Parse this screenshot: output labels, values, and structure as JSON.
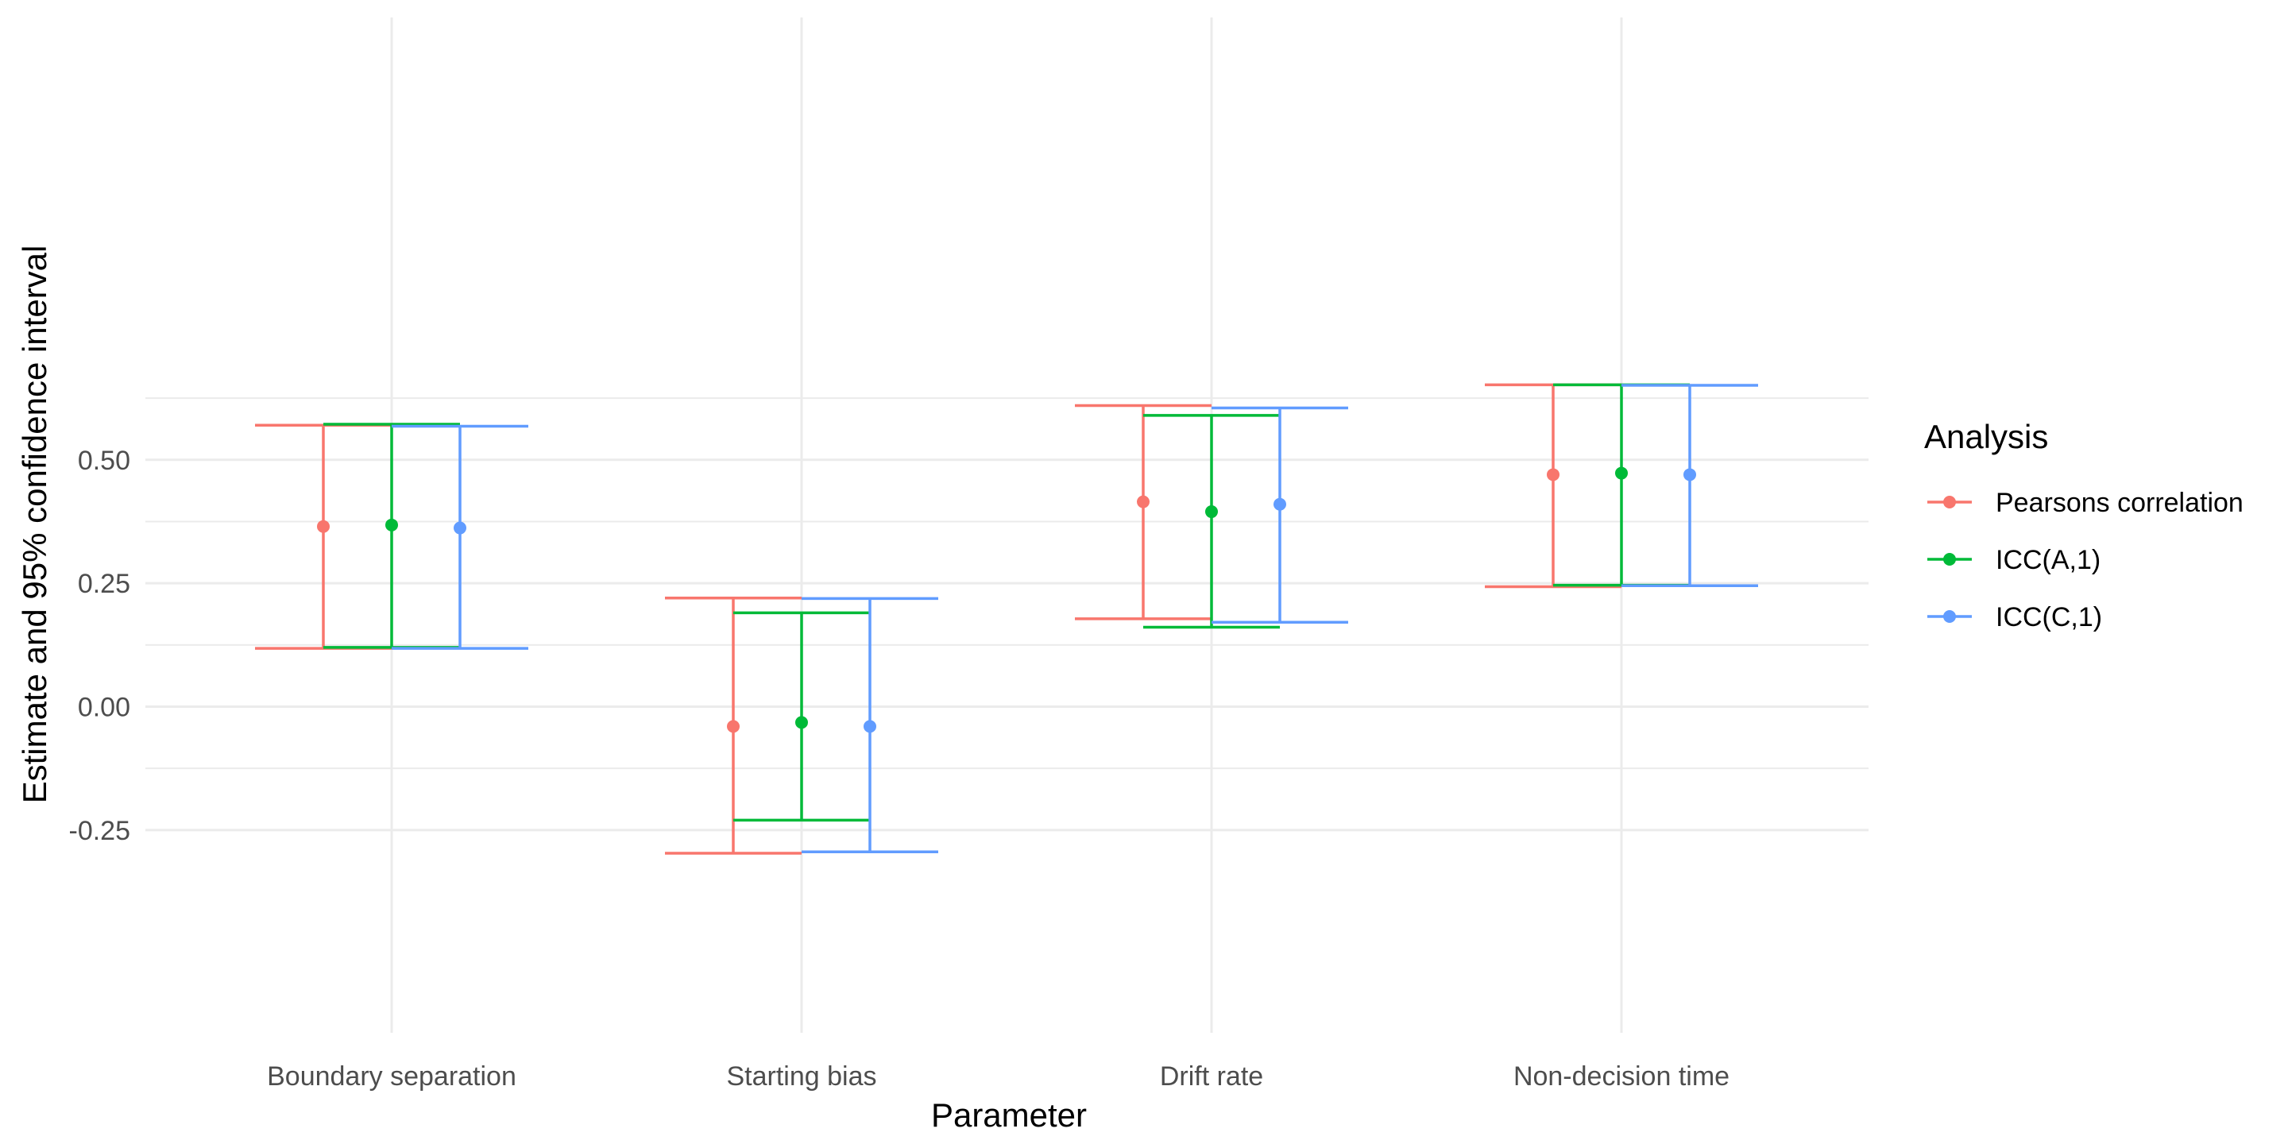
{
  "chart_data": {
    "type": "errorbar",
    "xlabel": "Parameter",
    "ylabel": "Estimate and 95% confidence interval",
    "categories": [
      "Boundary separation",
      "Starting bias",
      "Drift rate",
      "Non-decision time"
    ],
    "ylim": [
      -0.34,
      0.7
    ],
    "y_ticks": [
      -0.25,
      0.0,
      0.25,
      0.5
    ],
    "y_tick_labels": [
      "-0.25",
      "0.00",
      "0.25",
      "0.50"
    ],
    "grid": true,
    "legend": {
      "title": "Analysis",
      "position": "right"
    },
    "series": [
      {
        "name": "Pearsons correlation",
        "color": "#F8766D",
        "estimate": [
          0.365,
          -0.04,
          0.415,
          0.47
        ],
        "lower": [
          0.118,
          -0.297,
          0.178,
          0.243
        ],
        "upper": [
          0.57,
          0.22,
          0.61,
          0.652
        ]
      },
      {
        "name": "ICC(A,1)",
        "color": "#00BA38",
        "estimate": [
          0.368,
          -0.032,
          0.395,
          0.473
        ],
        "lower": [
          0.12,
          -0.23,
          0.161,
          0.246
        ],
        "upper": [
          0.572,
          0.19,
          0.59,
          0.652
        ]
      },
      {
        "name": "ICC(C,1)",
        "color": "#619CFF",
        "estimate": [
          0.362,
          -0.04,
          0.41,
          0.47
        ],
        "lower": [
          0.118,
          -0.294,
          0.171,
          0.245
        ],
        "upper": [
          0.568,
          0.219,
          0.605,
          0.651
        ]
      }
    ]
  }
}
